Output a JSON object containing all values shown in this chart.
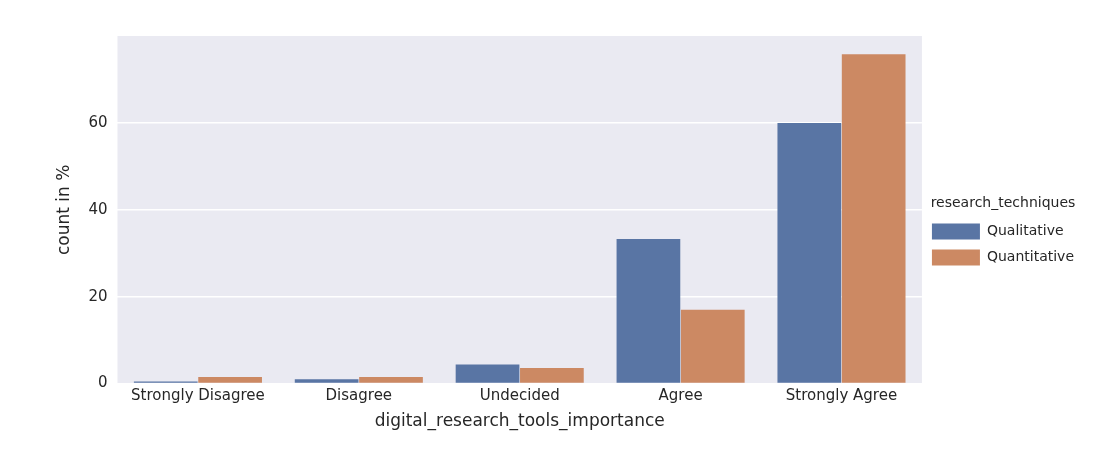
{
  "chart_data": {
    "type": "bar",
    "xlabel": "digital_research_tools_importance",
    "ylabel": "count in %",
    "legend_title": "research_techniques",
    "categories": [
      "Strongly Disagree",
      "Disagree",
      "Undecided",
      "Agree",
      "Strongly Agree"
    ],
    "series": [
      {
        "name": "Qualitative",
        "color": "#5975a4",
        "values": [
          0.5,
          1,
          4.4,
          33.3,
          60.0
        ]
      },
      {
        "name": "Quantitative",
        "color": "#cc8963",
        "values": [
          1.5,
          1.5,
          3.6,
          17.0,
          75.8
        ]
      }
    ],
    "ylim": [
      0,
      80
    ],
    "yticks": [
      0,
      20,
      40,
      60
    ],
    "grid": "y",
    "legend": "right"
  }
}
